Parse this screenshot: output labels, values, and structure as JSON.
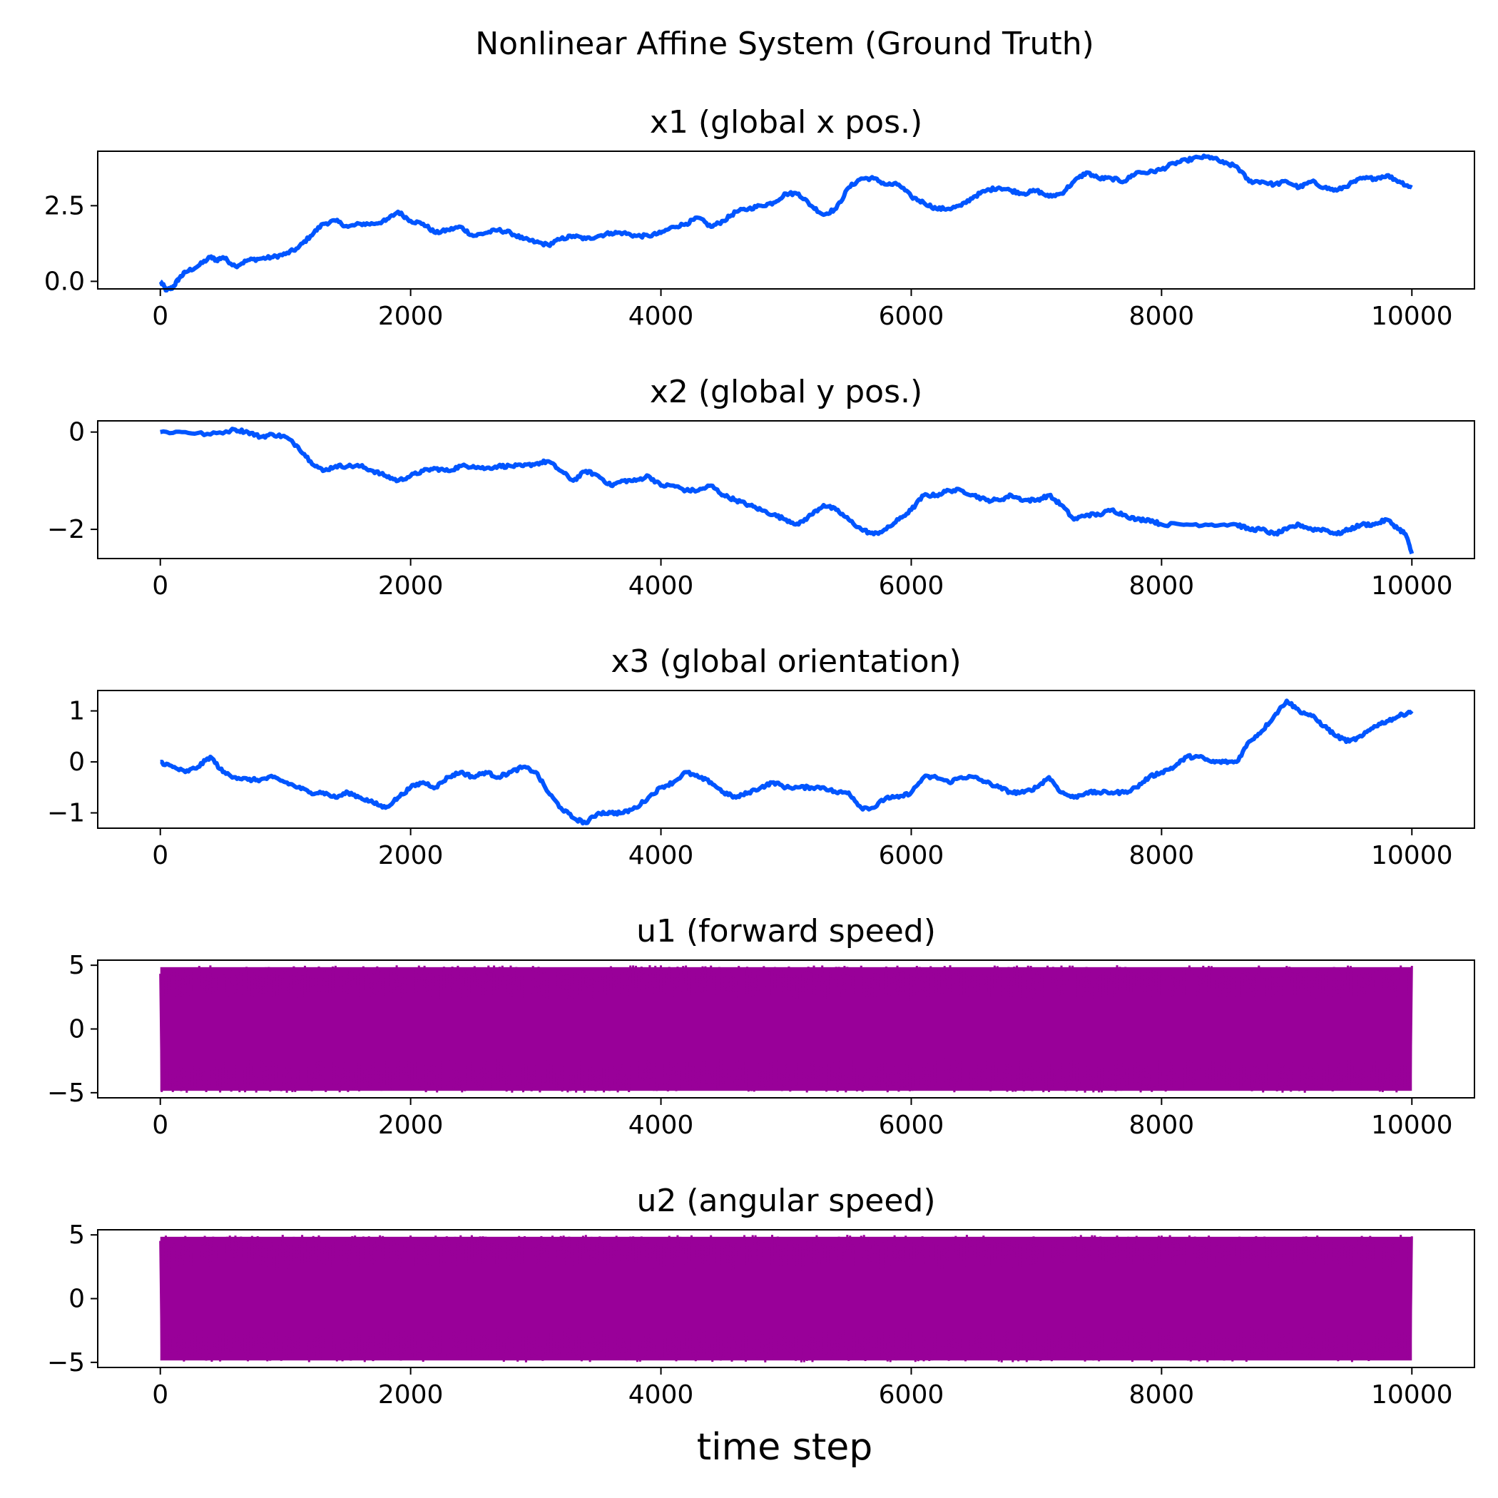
{
  "figure": {
    "title": "Nonlinear Affine System (Ground Truth)",
    "xlabel": "time step"
  },
  "colors": {
    "state": "#0055ff",
    "control": "#990099"
  },
  "chart_data": [
    {
      "type": "line",
      "title": "x1 (global x pos.)",
      "xlim": [
        -500,
        10500
      ],
      "ylim": [
        -0.25,
        4.3
      ],
      "xticks": [
        0,
        2000,
        4000,
        6000,
        8000,
        10000
      ],
      "xtick_labels": [
        "0",
        "2000",
        "4000",
        "6000",
        "8000",
        "10000"
      ],
      "yticks": [
        0,
        2.5
      ],
      "ytick_labels": [
        "0.0",
        "2.5"
      ],
      "series": [
        {
          "color": "#0055ff",
          "x": [
            0,
            50,
            100,
            150,
            200,
            300,
            400,
            450,
            500,
            600,
            700,
            800,
            900,
            1000,
            1100,
            1200,
            1300,
            1400,
            1500,
            1600,
            1700,
            1800,
            1900,
            2000,
            2100,
            2200,
            2300,
            2400,
            2500,
            2600,
            2700,
            2800,
            2900,
            3000,
            3100,
            3200,
            3300,
            3400,
            3500,
            3600,
            3700,
            3800,
            3900,
            4000,
            4100,
            4200,
            4300,
            4400,
            4500,
            4600,
            4700,
            4800,
            4900,
            5000,
            5100,
            5200,
            5300,
            5400,
            5500,
            5600,
            5700,
            5800,
            5900,
            6000,
            6100,
            6200,
            6300,
            6400,
            6500,
            6600,
            6700,
            6800,
            6900,
            7000,
            7100,
            7200,
            7300,
            7400,
            7500,
            7600,
            7700,
            7800,
            7900,
            8000,
            8100,
            8200,
            8300,
            8400,
            8500,
            8600,
            8700,
            8800,
            8900,
            9000,
            9100,
            9200,
            9300,
            9400,
            9500,
            9600,
            9700,
            9800,
            9900,
            10000
          ],
          "y": [
            0.0,
            -0.3,
            -0.2,
            0.1,
            0.3,
            0.5,
            0.8,
            0.7,
            0.8,
            0.5,
            0.7,
            0.75,
            0.8,
            0.9,
            1.1,
            1.5,
            1.9,
            2.0,
            1.8,
            1.9,
            1.9,
            2.0,
            2.3,
            2.0,
            1.9,
            1.6,
            1.7,
            1.8,
            1.5,
            1.6,
            1.7,
            1.6,
            1.4,
            1.3,
            1.2,
            1.4,
            1.5,
            1.4,
            1.5,
            1.6,
            1.6,
            1.5,
            1.5,
            1.6,
            1.8,
            1.9,
            2.1,
            1.8,
            2.0,
            2.3,
            2.4,
            2.5,
            2.6,
            2.9,
            2.9,
            2.5,
            2.2,
            2.4,
            3.1,
            3.4,
            3.4,
            3.2,
            3.2,
            2.8,
            2.6,
            2.4,
            2.4,
            2.5,
            2.8,
            3.0,
            3.1,
            3.0,
            2.9,
            3.0,
            2.8,
            2.9,
            3.3,
            3.6,
            3.4,
            3.4,
            3.3,
            3.6,
            3.6,
            3.7,
            3.9,
            4.0,
            4.1,
            4.1,
            3.9,
            3.8,
            3.3,
            3.3,
            3.2,
            3.3,
            3.1,
            3.3,
            3.1,
            3.0,
            3.2,
            3.4,
            3.4,
            3.5,
            3.3,
            3.1
          ]
        }
      ]
    },
    {
      "type": "line",
      "title": "x2 (global y pos.)",
      "xlim": [
        -500,
        10500
      ],
      "ylim": [
        -2.6,
        0.23
      ],
      "xticks": [
        0,
        2000,
        4000,
        6000,
        8000,
        10000
      ],
      "xtick_labels": [
        "0",
        "2000",
        "4000",
        "6000",
        "8000",
        "10000"
      ],
      "yticks": [
        0,
        -2
      ],
      "ytick_labels": [
        "0",
        "−2"
      ],
      "series": [
        {
          "color": "#0055ff",
          "x": [
            0,
            200,
            400,
            600,
            700,
            800,
            900,
            1000,
            1100,
            1200,
            1300,
            1400,
            1500,
            1600,
            1700,
            1800,
            1900,
            2000,
            2100,
            2200,
            2300,
            2400,
            2500,
            2600,
            2700,
            2800,
            2900,
            3000,
            3100,
            3200,
            3300,
            3400,
            3500,
            3600,
            3700,
            3800,
            3900,
            4000,
            4100,
            4200,
            4300,
            4400,
            4500,
            4600,
            4700,
            4800,
            4900,
            5000,
            5100,
            5200,
            5300,
            5400,
            5500,
            5600,
            5700,
            5800,
            5900,
            6000,
            6100,
            6200,
            6300,
            6400,
            6500,
            6600,
            6700,
            6800,
            6900,
            7000,
            7100,
            7200,
            7300,
            7400,
            7500,
            7600,
            7700,
            7800,
            7900,
            8000,
            8200,
            8400,
            8600,
            8700,
            8800,
            8900,
            9000,
            9100,
            9200,
            9300,
            9400,
            9500,
            9600,
            9700,
            9800,
            9900,
            9950,
            10000
          ],
          "y": [
            0.0,
            0.0,
            -0.05,
            0.05,
            0.0,
            -0.1,
            -0.05,
            -0.1,
            -0.3,
            -0.6,
            -0.8,
            -0.7,
            -0.7,
            -0.7,
            -0.8,
            -0.9,
            -1.0,
            -0.9,
            -0.8,
            -0.75,
            -0.8,
            -0.7,
            -0.7,
            -0.75,
            -0.7,
            -0.7,
            -0.7,
            -0.65,
            -0.6,
            -0.8,
            -1.0,
            -0.8,
            -0.9,
            -1.1,
            -1.0,
            -1.0,
            -0.9,
            -1.1,
            -1.1,
            -1.2,
            -1.2,
            -1.1,
            -1.3,
            -1.4,
            -1.5,
            -1.6,
            -1.7,
            -1.8,
            -1.9,
            -1.7,
            -1.5,
            -1.6,
            -1.8,
            -2.0,
            -2.1,
            -2.0,
            -1.8,
            -1.6,
            -1.3,
            -1.3,
            -1.2,
            -1.2,
            -1.3,
            -1.4,
            -1.4,
            -1.3,
            -1.4,
            -1.4,
            -1.3,
            -1.5,
            -1.8,
            -1.7,
            -1.7,
            -1.6,
            -1.7,
            -1.8,
            -1.8,
            -1.9,
            -1.9,
            -1.9,
            -1.9,
            -2.0,
            -2.0,
            -2.1,
            -2.0,
            -1.9,
            -2.0,
            -2.0,
            -2.1,
            -2.0,
            -1.9,
            -1.9,
            -1.8,
            -2.0,
            -2.1,
            -2.5
          ]
        }
      ]
    },
    {
      "type": "line",
      "title": "x3 (global orientation)",
      "xlim": [
        -500,
        10500
      ],
      "ylim": [
        -1.3,
        1.4
      ],
      "xticks": [
        0,
        2000,
        4000,
        6000,
        8000,
        10000
      ],
      "xtick_labels": [
        "0",
        "2000",
        "4000",
        "6000",
        "8000",
        "10000"
      ],
      "yticks": [
        1,
        0,
        -1
      ],
      "ytick_labels": [
        "1",
        "0",
        "−1"
      ],
      "series": [
        {
          "color": "#0055ff",
          "x": [
            0,
            100,
            200,
            300,
            400,
            500,
            600,
            700,
            800,
            900,
            1000,
            1100,
            1200,
            1300,
            1400,
            1500,
            1600,
            1700,
            1800,
            1900,
            2000,
            2100,
            2200,
            2300,
            2400,
            2500,
            2600,
            2700,
            2800,
            2900,
            3000,
            3100,
            3200,
            3300,
            3400,
            3500,
            3600,
            3700,
            3800,
            3900,
            4000,
            4100,
            4200,
            4300,
            4400,
            4500,
            4600,
            4700,
            4800,
            4900,
            5000,
            5100,
            5200,
            5300,
            5400,
            5500,
            5600,
            5700,
            5800,
            5900,
            6000,
            6100,
            6200,
            6300,
            6400,
            6500,
            6600,
            6700,
            6800,
            6900,
            7000,
            7100,
            7200,
            7300,
            7400,
            7500,
            7600,
            7700,
            7800,
            7900,
            8000,
            8100,
            8200,
            8300,
            8400,
            8500,
            8600,
            8700,
            8800,
            8900,
            9000,
            9100,
            9200,
            9300,
            9400,
            9500,
            9600,
            9700,
            9800,
            9900,
            10000
          ],
          "y": [
            0.0,
            -0.1,
            -0.2,
            -0.1,
            0.1,
            -0.2,
            -0.3,
            -0.35,
            -0.35,
            -0.3,
            -0.4,
            -0.5,
            -0.6,
            -0.6,
            -0.7,
            -0.6,
            -0.7,
            -0.8,
            -0.9,
            -0.7,
            -0.5,
            -0.4,
            -0.5,
            -0.3,
            -0.2,
            -0.3,
            -0.2,
            -0.3,
            -0.2,
            -0.1,
            -0.2,
            -0.6,
            -0.9,
            -1.1,
            -1.2,
            -1.0,
            -1.0,
            -1.0,
            -0.9,
            -0.7,
            -0.5,
            -0.4,
            -0.2,
            -0.3,
            -0.4,
            -0.6,
            -0.7,
            -0.6,
            -0.5,
            -0.4,
            -0.5,
            -0.5,
            -0.5,
            -0.5,
            -0.6,
            -0.6,
            -0.9,
            -0.9,
            -0.7,
            -0.7,
            -0.6,
            -0.3,
            -0.3,
            -0.4,
            -0.3,
            -0.3,
            -0.4,
            -0.5,
            -0.6,
            -0.6,
            -0.5,
            -0.3,
            -0.6,
            -0.7,
            -0.6,
            -0.6,
            -0.6,
            -0.6,
            -0.5,
            -0.3,
            -0.2,
            -0.1,
            0.1,
            0.1,
            0.0,
            0.0,
            0.0,
            0.4,
            0.6,
            0.9,
            1.2,
            1.0,
            0.9,
            0.7,
            0.5,
            0.4,
            0.5,
            0.7,
            0.8,
            0.9,
            1.0
          ]
        }
      ]
    },
    {
      "type": "line",
      "title": "u1 (forward speed)",
      "xlim": [
        -500,
        10500
      ],
      "ylim": [
        -5.4,
        5.4
      ],
      "xticks": [
        0,
        2000,
        4000,
        6000,
        8000,
        10000
      ],
      "xtick_labels": [
        "0",
        "2000",
        "4000",
        "6000",
        "8000",
        "10000"
      ],
      "yticks": [
        5,
        0,
        -5
      ],
      "ytick_labels": [
        "5",
        "0",
        "−5"
      ],
      "series": [
        {
          "color": "#990099",
          "x": [
            0,
            10000
          ],
          "y_min": -5,
          "y_max": 5
        }
      ]
    },
    {
      "type": "line",
      "title": "u2 (angular speed)",
      "xlim": [
        -500,
        10500
      ],
      "ylim": [
        -5.4,
        5.4
      ],
      "xticks": [
        0,
        2000,
        4000,
        6000,
        8000,
        10000
      ],
      "xtick_labels": [
        "0",
        "2000",
        "4000",
        "6000",
        "8000",
        "10000"
      ],
      "yticks": [
        5,
        0,
        -5
      ],
      "ytick_labels": [
        "5",
        "0",
        "−5"
      ],
      "series": [
        {
          "color": "#990099",
          "x": [
            0,
            10000
          ],
          "y_min": -5,
          "y_max": 5
        }
      ]
    }
  ]
}
